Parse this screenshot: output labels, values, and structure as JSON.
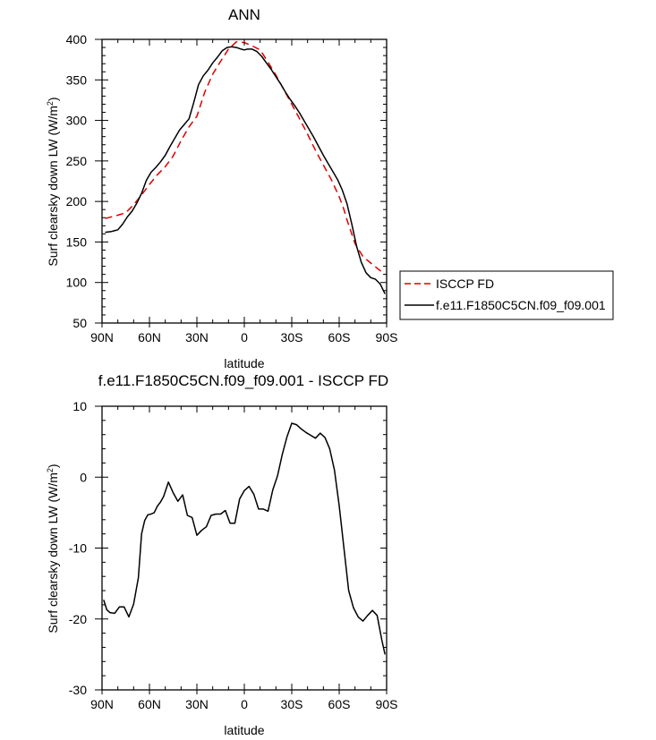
{
  "chart_data": [
    {
      "type": "line",
      "title": "ANN",
      "xlabel": "latitude",
      "ylabel": "Surf clearsky down LW (W/m",
      "ylabel_sup": "2",
      "ylabel_close": ")",
      "xlim": [
        90,
        -90
      ],
      "ylim": [
        50,
        400
      ],
      "xticks": [
        90,
        60,
        30,
        0,
        -30,
        -60,
        -90
      ],
      "xtick_labels": [
        "90N",
        "60N",
        "30N",
        "0",
        "30S",
        "60S",
        "90S"
      ],
      "yticks": [
        50,
        100,
        150,
        200,
        250,
        300,
        350,
        400
      ],
      "ytick_labels": [
        "50",
        "100",
        "150",
        "200",
        "250",
        "300",
        "350",
        "400"
      ],
      "legend": {
        "placement": "right"
      },
      "series": [
        {
          "name": "ISCCP FD",
          "color": "#dd0000",
          "dash": "dashed",
          "x": [
            88,
            80,
            75,
            70,
            65,
            60,
            55,
            50,
            45,
            40,
            35,
            30,
            25,
            20,
            15,
            10,
            5,
            0,
            -5,
            -10,
            -15,
            -20,
            -25,
            -30,
            -35,
            -40,
            -45,
            -50,
            -55,
            -60,
            -63,
            -65,
            -70,
            -75,
            -80,
            -85,
            -89
          ],
          "y": [
            179,
            183,
            186,
            196,
            208,
            221,
            233,
            243,
            256,
            275,
            292,
            305,
            335,
            357,
            373,
            388,
            397,
            396,
            392,
            387,
            372,
            356,
            338,
            320,
            302,
            283,
            263,
            245,
            227,
            206,
            190,
            177,
            148,
            132,
            124,
            116,
            110
          ]
        },
        {
          "name": "f.e11.F1850C5CN.f09_f09.001",
          "color": "#000000",
          "dash": "solid",
          "x": [
            88,
            84,
            80,
            77,
            74,
            71,
            68,
            65,
            62,
            59,
            56,
            53,
            50,
            47,
            44,
            41,
            38,
            35,
            32,
            29,
            26,
            23,
            20,
            17,
            14,
            11,
            8,
            5,
            2,
            0,
            -2,
            -5,
            -8,
            -11,
            -14,
            -17,
            -20,
            -23,
            -26,
            -29,
            -32,
            -35,
            -38,
            -41,
            -44,
            -47,
            -50,
            -53,
            -56,
            -59,
            -62,
            -65,
            -68,
            -71,
            -74,
            -77,
            -80,
            -83,
            -86,
            -89
          ],
          "y": [
            162,
            163,
            165,
            172,
            181,
            188,
            198,
            210,
            226,
            236,
            242,
            249,
            257,
            268,
            278,
            288,
            295,
            302,
            322,
            344,
            355,
            362,
            371,
            378,
            386,
            390,
            391,
            390,
            388,
            387,
            388,
            388,
            385,
            379,
            371,
            363,
            354,
            345,
            335,
            326,
            318,
            309,
            299,
            289,
            279,
            268,
            257,
            247,
            237,
            227,
            214,
            197,
            172,
            145,
            125,
            112,
            106,
            104,
            98,
            86
          ]
        }
      ]
    },
    {
      "type": "line",
      "title": "f.e11.F1850C5CN.f09_f09.001 - ISCCP FD",
      "xlabel": "latitude",
      "ylabel": "Surf clearsky down LW (W/m",
      "ylabel_sup": "2",
      "ylabel_close": ")",
      "xlim": [
        90,
        -90
      ],
      "ylim": [
        -30,
        10
      ],
      "xticks": [
        90,
        60,
        30,
        0,
        -30,
        -60,
        -90
      ],
      "xtick_labels": [
        "90N",
        "60N",
        "30N",
        "0",
        "30S",
        "60S",
        "90S"
      ],
      "yticks": [
        -30,
        -20,
        -10,
        0,
        10
      ],
      "ytick_labels": [
        "-30",
        "-20",
        "-10",
        "0",
        "10"
      ],
      "series": [
        {
          "name": "",
          "color": "#000000",
          "dash": "solid",
          "x": [
            89,
            87,
            85,
            82,
            79,
            76,
            73,
            70,
            67,
            65,
            63,
            61,
            59,
            57,
            55,
            53,
            51,
            48,
            45,
            42,
            39,
            36,
            33,
            30,
            27,
            24,
            21,
            18,
            15,
            12,
            9,
            6,
            3,
            0,
            -3,
            -6,
            -9,
            -12,
            -15,
            -18,
            -21,
            -24,
            -27,
            -30,
            -33,
            -36,
            -39,
            -42,
            -45,
            -48,
            -51,
            -54,
            -57,
            -60,
            -63,
            -66,
            -69,
            -72,
            -75,
            -78,
            -81,
            -84,
            -87,
            -89
          ],
          "y": [
            -17.3,
            -18.7,
            -19.1,
            -19.2,
            -18.3,
            -18.3,
            -19.7,
            -17.9,
            -14.2,
            -8,
            -6.1,
            -5.3,
            -5.2,
            -5,
            -4.1,
            -3.5,
            -2.7,
            -0.7,
            -2.2,
            -3.4,
            -2.5,
            -5.4,
            -5.7,
            -8.2,
            -7.5,
            -7,
            -5.4,
            -5.2,
            -5.2,
            -4.7,
            -6.5,
            -6.5,
            -3.1,
            -1.9,
            -1.3,
            -2.4,
            -4.5,
            -4.5,
            -4.8,
            -1.8,
            0.2,
            3.2,
            5.7,
            7.6,
            7.4,
            6.8,
            6.3,
            5.9,
            5.5,
            6.2,
            5.6,
            4,
            1,
            -4,
            -10,
            -16,
            -18.4,
            -19.7,
            -20.3,
            -19.5,
            -18.8,
            -19.5,
            -23,
            -25
          ]
        }
      ]
    }
  ]
}
